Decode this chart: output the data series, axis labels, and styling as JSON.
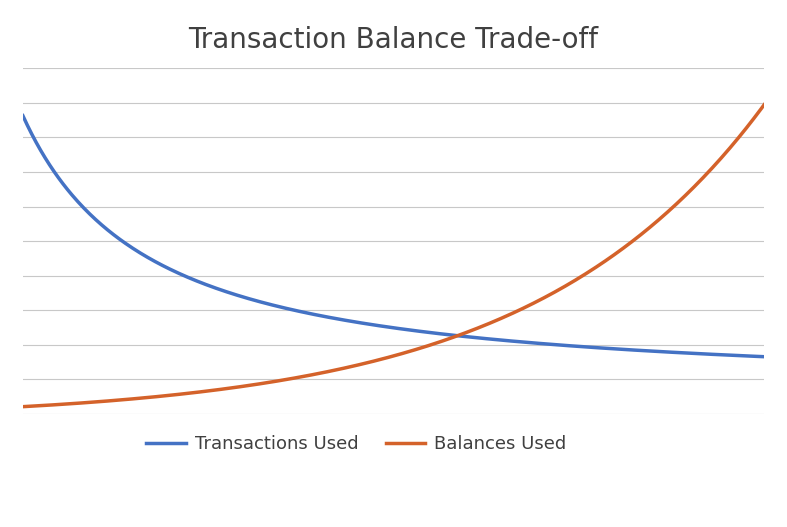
{
  "title": "Transaction Balance Trade-off",
  "title_fontsize": 20,
  "title_color": "#404040",
  "title_fontweight": "normal",
  "background_color": "#ffffff",
  "grid_color": "#c8c8c8",
  "transactions_color": "#4472c4",
  "balances_color": "#d4622a",
  "legend_labels": [
    "Transactions Used",
    "Balances Used"
  ],
  "line_width": 2.5,
  "figsize": [
    7.87,
    5.27
  ],
  "dpi": 100,
  "n_gridlines": 11
}
